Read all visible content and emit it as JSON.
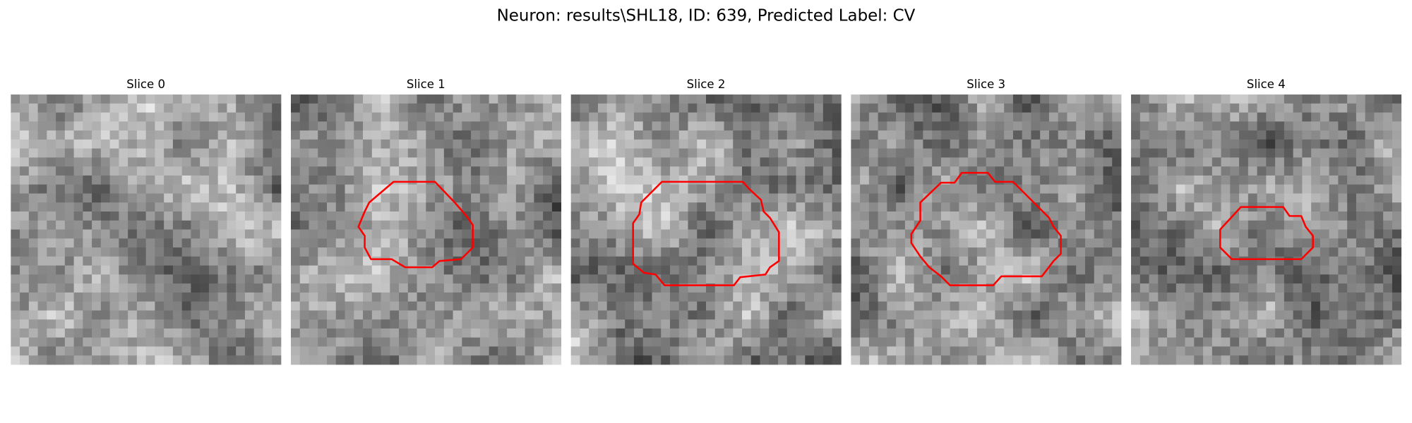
{
  "header": {
    "title": "Neuron: results\\SHL18, ID: 639, Predicted Label: CV"
  },
  "panels": [
    {
      "title": "Slice 0"
    },
    {
      "title": "Slice 1"
    },
    {
      "title": "Slice 2"
    },
    {
      "title": "Slice 3"
    },
    {
      "title": "Slice 4"
    }
  ]
}
